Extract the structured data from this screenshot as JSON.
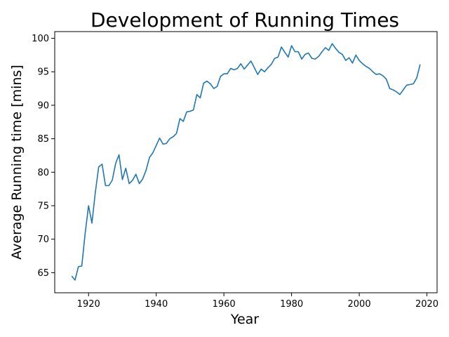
{
  "chart_data": {
    "type": "line",
    "title": "Development of Running Times",
    "xlabel": "Year",
    "ylabel": "Average Running time [mins]",
    "xlim": [
      1910,
      2023
    ],
    "ylim": [
      62.0,
      101.0
    ],
    "xticks": [
      1920,
      1940,
      1960,
      1980,
      2000,
      2020
    ],
    "yticks": [
      65,
      70,
      75,
      80,
      85,
      90,
      95,
      100
    ],
    "grid": false,
    "legend": "none",
    "colors": {
      "line": "#1f77b4"
    },
    "series": [
      {
        "x": [
          1915,
          1916,
          1917,
          1918,
          1919,
          1920,
          1921,
          1922,
          1923,
          1924,
          1925,
          1926,
          1927,
          1928,
          1929,
          1930,
          1931,
          1932,
          1933,
          1934,
          1935,
          1936,
          1937,
          1938,
          1939,
          1940,
          1941,
          1942,
          1943,
          1944,
          1945,
          1946,
          1947,
          1948,
          1949,
          1950,
          1951,
          1952,
          1953,
          1954,
          1955,
          1956,
          1957,
          1958,
          1959,
          1960,
          1961,
          1962,
          1963,
          1964,
          1965,
          1966,
          1967,
          1968,
          1969,
          1970,
          1971,
          1972,
          1973,
          1974,
          1975,
          1976,
          1977,
          1978,
          1979,
          1980,
          1981,
          1982,
          1983,
          1984,
          1985,
          1986,
          1987,
          1988,
          1989,
          1990,
          1991,
          1992,
          1993,
          1994,
          1995,
          1996,
          1997,
          1998,
          1999,
          2000,
          2001,
          2002,
          2003,
          2004,
          2005,
          2006,
          2007,
          2008,
          2009,
          2010,
          2011,
          2012,
          2013,
          2014,
          2015,
          2016,
          2017,
          2018
        ],
        "y": [
          64.5,
          63.9,
          65.9,
          66.0,
          70.9,
          75.0,
          72.4,
          77.0,
          80.8,
          81.2,
          78.0,
          78.0,
          78.8,
          81.3,
          82.6,
          78.9,
          80.6,
          78.3,
          78.8,
          79.7,
          78.3,
          79.0,
          80.3,
          82.2,
          82.9,
          84.0,
          85.1,
          84.2,
          84.3,
          85.0,
          85.3,
          85.8,
          88.0,
          87.6,
          89.0,
          89.1,
          89.3,
          91.6,
          91.1,
          93.3,
          93.6,
          93.2,
          92.5,
          92.8,
          94.3,
          94.7,
          94.7,
          95.5,
          95.3,
          95.5,
          96.2,
          95.4,
          96.0,
          96.6,
          95.6,
          94.6,
          95.4,
          95.0,
          95.6,
          96.1,
          97.0,
          97.2,
          98.7,
          97.9,
          97.2,
          98.9,
          98.0,
          98.0,
          96.9,
          97.6,
          97.8,
          97.0,
          96.9,
          97.3,
          98.0,
          98.6,
          98.2,
          99.2,
          98.5,
          97.9,
          97.6,
          96.7,
          97.1,
          96.3,
          97.5,
          96.7,
          96.2,
          95.8,
          95.5,
          95.0,
          94.6,
          94.7,
          94.4,
          93.9,
          92.5,
          92.3,
          92.0,
          91.6,
          92.3,
          93.0,
          93.1,
          93.2,
          94.1,
          96.1
        ]
      }
    ]
  }
}
